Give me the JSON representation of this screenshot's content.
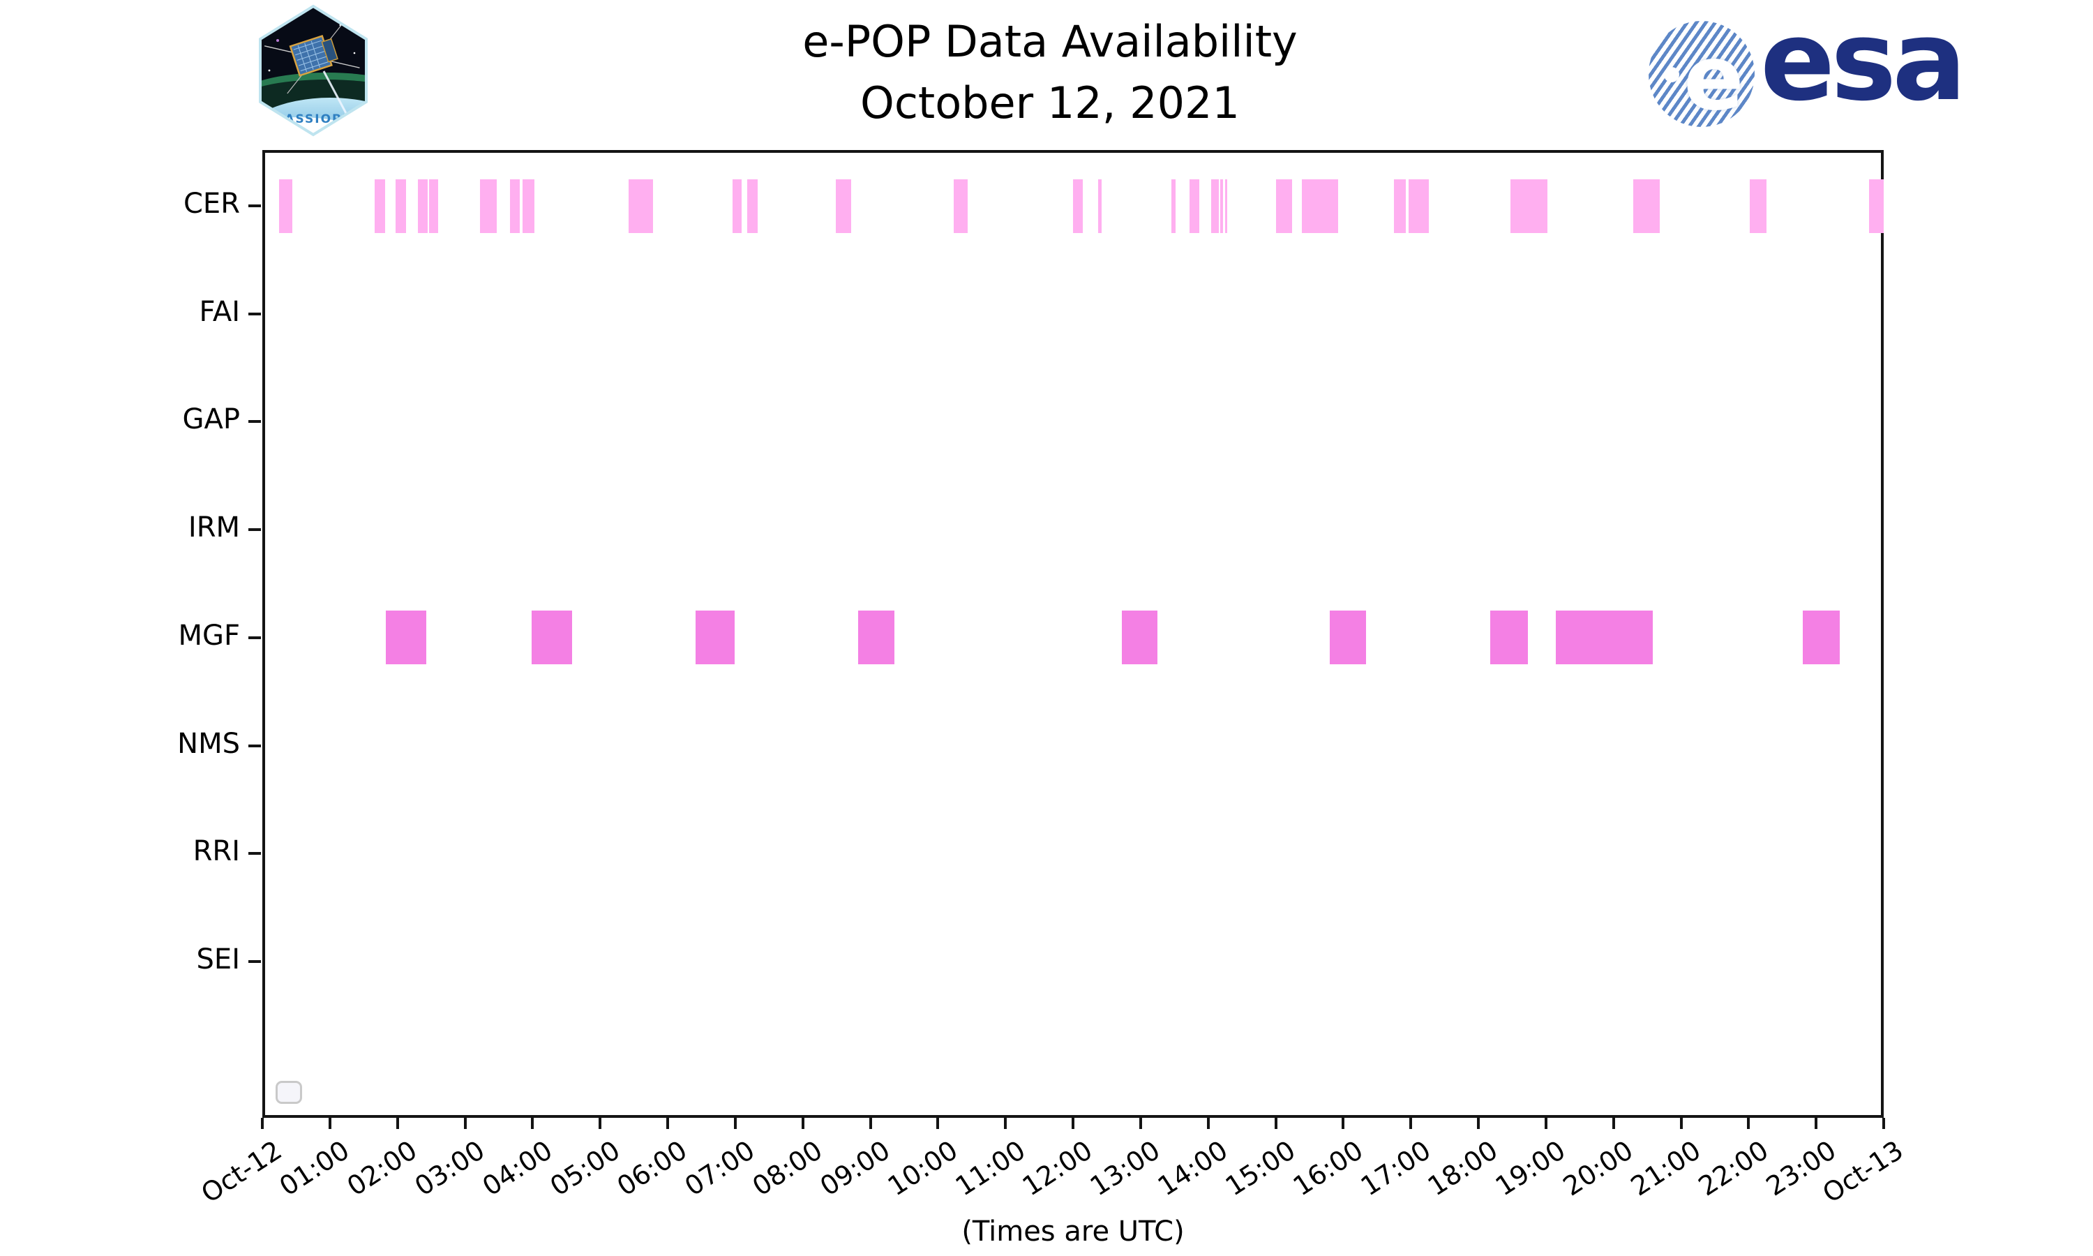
{
  "header": {
    "cassiope_label": "CASSIOPE",
    "esa_word": "esa",
    "esa_globe_letter": "e"
  },
  "chart_data": {
    "type": "gantt",
    "title": "e-POP Data Availability",
    "subtitle": "October 12, 2021",
    "xlabel": "(Times are UTC)",
    "x_unit_note": "hours UTC, Oct-12 00:00 to Oct-13 00:00",
    "xlim": [
      0,
      24
    ],
    "grid": false,
    "x_tick_labels": [
      "Oct-12",
      "01:00",
      "02:00",
      "03:00",
      "04:00",
      "05:00",
      "06:00",
      "07:00",
      "08:00",
      "09:00",
      "10:00",
      "11:00",
      "12:00",
      "13:00",
      "14:00",
      "15:00",
      "16:00",
      "17:00",
      "18:00",
      "19:00",
      "20:00",
      "21:00",
      "22:00",
      "23:00",
      "Oct-13"
    ],
    "legend_box": {
      "visible": true,
      "entries": []
    },
    "colors": {
      "cer_bar": "#ffaff0",
      "mgf_bar": "#f480e4",
      "spine": "#141414"
    },
    "rows": [
      {
        "label": "CER",
        "color": "#ffaff0",
        "intervals": [
          [
            0.25,
            0.44
          ],
          [
            1.66,
            1.82
          ],
          [
            1.97,
            2.13
          ],
          [
            2.3,
            2.45
          ],
          [
            2.47,
            2.6
          ],
          [
            3.22,
            3.47
          ],
          [
            3.67,
            3.81
          ],
          [
            3.85,
            4.03
          ],
          [
            5.42,
            5.78
          ],
          [
            6.96,
            7.09
          ],
          [
            7.18,
            7.33
          ],
          [
            8.49,
            8.72
          ],
          [
            10.23,
            10.44
          ],
          [
            12.0,
            12.14
          ],
          [
            12.37,
            12.42
          ],
          [
            13.46,
            13.52
          ],
          [
            13.72,
            13.87
          ],
          [
            14.04,
            14.16
          ],
          [
            14.18,
            14.22
          ],
          [
            14.25,
            14.28
          ],
          [
            15.0,
            15.24
          ],
          [
            15.39,
            15.92
          ],
          [
            16.75,
            16.93
          ],
          [
            16.97,
            17.27
          ],
          [
            18.48,
            19.02
          ],
          [
            20.29,
            20.69
          ],
          [
            22.02,
            22.27
          ],
          [
            23.78,
            24.0
          ]
        ]
      },
      {
        "label": "FAI",
        "color": "#ffaff0",
        "intervals": []
      },
      {
        "label": "GAP",
        "color": "#ffaff0",
        "intervals": []
      },
      {
        "label": "IRM",
        "color": "#ffaff0",
        "intervals": []
      },
      {
        "label": "MGF",
        "color": "#f480e4",
        "intervals": [
          [
            1.83,
            2.43
          ],
          [
            3.99,
            4.59
          ],
          [
            6.41,
            6.99
          ],
          [
            8.82,
            9.36
          ],
          [
            12.72,
            13.25
          ],
          [
            15.8,
            16.34
          ],
          [
            18.18,
            18.73
          ],
          [
            19.15,
            20.58
          ],
          [
            22.8,
            23.35
          ]
        ]
      },
      {
        "label": "NMS",
        "color": "#ffaff0",
        "intervals": []
      },
      {
        "label": "RRI",
        "color": "#ffaff0",
        "intervals": []
      },
      {
        "label": "SEI",
        "color": "#ffaff0",
        "intervals": []
      }
    ]
  }
}
